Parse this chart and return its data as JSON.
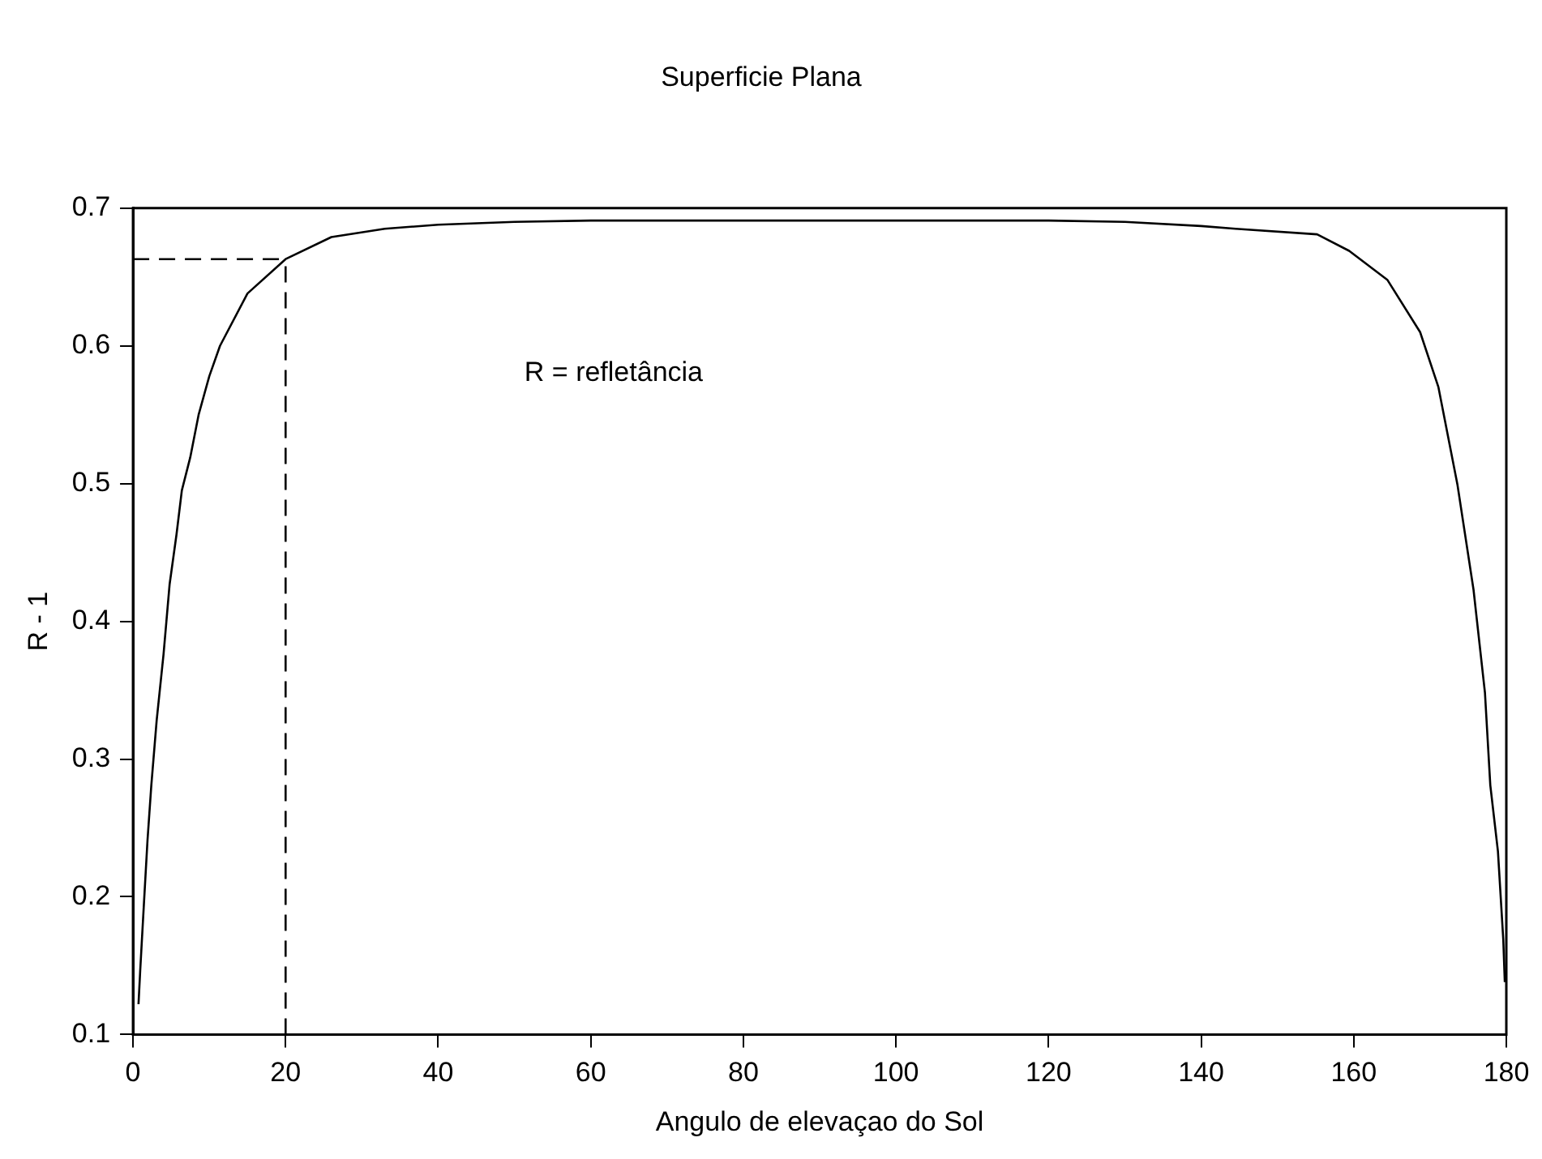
{
  "chart_data": {
    "type": "line",
    "title": "Superficie Plana",
    "xlabel": "Angulo de elevaçao do Sol",
    "ylabel": "R - 1",
    "annotations": [
      "R = refletância"
    ],
    "xlim": [
      0,
      180
    ],
    "xticks": [
      0,
      20,
      40,
      60,
      80,
      100,
      120,
      140,
      160,
      180
    ],
    "ylim": [
      0.1,
      0.7
    ],
    "yticks": [
      0.1,
      0.2,
      0.3,
      0.4,
      0.5,
      0.6,
      0.7
    ],
    "grid": false,
    "legend": false,
    "marker": "none",
    "line_style": "solid",
    "series": [
      {
        "color": "#000000",
        "x": [
          0.72,
          0.94,
          1.45,
          1.9,
          2.4,
          3.1,
          4.0,
          4.8,
          5.7,
          6.4,
          7.5,
          8.6,
          10,
          11.4,
          15,
          20,
          26,
          33,
          40,
          50,
          60,
          80,
          100,
          120,
          130,
          140,
          144.5,
          155.2,
          159.4,
          164.4,
          168.7,
          171.1,
          173.6,
          175.7,
          177.2,
          177.9,
          178.9,
          179.6,
          179.8
        ],
        "values": [
          0.122,
          0.146,
          0.197,
          0.241,
          0.281,
          0.328,
          0.376,
          0.427,
          0.463,
          0.495,
          0.519,
          0.55,
          0.578,
          0.6,
          0.638,
          0.663,
          0.679,
          0.685,
          0.688,
          0.69,
          0.691,
          0.691,
          0.691,
          0.691,
          0.69,
          0.687,
          0.685,
          0.681,
          0.669,
          0.648,
          0.61,
          0.57,
          0.499,
          0.423,
          0.348,
          0.281,
          0.233,
          0.169,
          0.138
        ]
      }
    ],
    "ref_lines": [
      {
        "axis": "x",
        "value": 20,
        "color": "#000000",
        "line_style": "dashed"
      },
      {
        "axis": "y",
        "value": 0.663,
        "color": "#000000",
        "line_style": "dashed"
      }
    ]
  }
}
